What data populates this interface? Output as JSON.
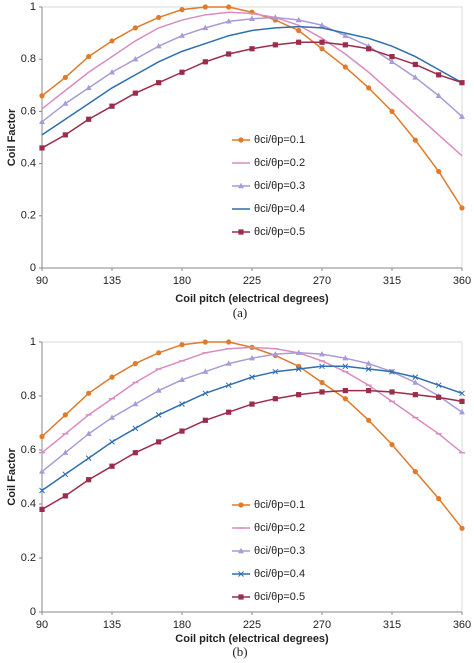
{
  "chart_data": [
    {
      "type": "line",
      "caption": "(a)",
      "x_label": "Coil pitch (electrical degrees)",
      "y_label": "Coil Factor",
      "x": [
        90,
        105,
        120,
        135,
        150,
        165,
        180,
        195,
        210,
        225,
        240,
        255,
        270,
        285,
        300,
        315,
        330,
        345,
        360
      ],
      "xlim": [
        90,
        360
      ],
      "xticks": [
        90,
        135,
        180,
        225,
        270,
        315,
        360
      ],
      "ylim": [
        0,
        1
      ],
      "yticks": [
        0,
        0.2,
        0.4,
        0.6,
        0.8,
        1
      ],
      "grid": false,
      "legend": "center",
      "series": [
        {
          "name": "θci/θp=0.1",
          "color": "#e07b2a",
          "marker": "circle",
          "values": [
            0.66,
            0.73,
            0.81,
            0.87,
            0.92,
            0.96,
            0.99,
            1.0,
            1.0,
            0.98,
            0.95,
            0.91,
            0.84,
            0.77,
            0.69,
            0.6,
            0.49,
            0.37,
            0.23
          ]
        },
        {
          "name": "θci/θp=0.2",
          "color": "#d98cc0",
          "marker": "none",
          "values": [
            0.61,
            0.68,
            0.75,
            0.81,
            0.87,
            0.92,
            0.95,
            0.97,
            0.98,
            0.975,
            0.96,
            0.93,
            0.88,
            0.82,
            0.75,
            0.67,
            0.59,
            0.51,
            0.43
          ]
        },
        {
          "name": "θci/θp=0.3",
          "color": "#a99bd8",
          "marker": "triangle",
          "values": [
            0.56,
            0.63,
            0.69,
            0.75,
            0.8,
            0.85,
            0.89,
            0.92,
            0.945,
            0.955,
            0.96,
            0.95,
            0.93,
            0.89,
            0.85,
            0.79,
            0.73,
            0.66,
            0.58
          ]
        },
        {
          "name": "θci/θp=0.4",
          "color": "#2f6fb0",
          "marker": "none",
          "values": [
            0.51,
            0.57,
            0.63,
            0.69,
            0.74,
            0.79,
            0.83,
            0.86,
            0.89,
            0.91,
            0.92,
            0.925,
            0.92,
            0.9,
            0.88,
            0.85,
            0.81,
            0.76,
            0.71
          ]
        },
        {
          "name": "θci/θp=0.5",
          "color": "#9b2c4a",
          "marker": "square",
          "values": [
            0.46,
            0.51,
            0.57,
            0.62,
            0.67,
            0.71,
            0.75,
            0.79,
            0.82,
            0.84,
            0.855,
            0.865,
            0.865,
            0.855,
            0.84,
            0.81,
            0.78,
            0.74,
            0.71
          ]
        }
      ]
    },
    {
      "type": "line",
      "caption": "(b)",
      "x_label": "Coil pitch (electrical degrees)",
      "y_label": "Coil Factor",
      "x": [
        90,
        105,
        120,
        135,
        150,
        165,
        180,
        195,
        210,
        225,
        240,
        255,
        270,
        285,
        300,
        315,
        330,
        345,
        360
      ],
      "xlim": [
        90,
        360
      ],
      "xticks": [
        90,
        135,
        180,
        225,
        270,
        315,
        360
      ],
      "ylim": [
        0,
        1
      ],
      "yticks": [
        0,
        0.2,
        0.4,
        0.6,
        0.8,
        1
      ],
      "grid": false,
      "legend": "center",
      "series": [
        {
          "name": "θci/θp=0.1",
          "color": "#e07b2a",
          "marker": "circle",
          "values": [
            0.65,
            0.73,
            0.81,
            0.87,
            0.92,
            0.96,
            0.99,
            1.0,
            1.0,
            0.98,
            0.95,
            0.91,
            0.85,
            0.79,
            0.71,
            0.62,
            0.52,
            0.42,
            0.31
          ]
        },
        {
          "name": "θci/θp=0.2",
          "color": "#d98cc0",
          "marker": "dash",
          "values": [
            0.59,
            0.66,
            0.73,
            0.79,
            0.85,
            0.9,
            0.93,
            0.96,
            0.975,
            0.98,
            0.975,
            0.96,
            0.93,
            0.89,
            0.84,
            0.78,
            0.72,
            0.66,
            0.59
          ]
        },
        {
          "name": "θci/θp=0.3",
          "color": "#a99bd8",
          "marker": "triangle",
          "values": [
            0.52,
            0.59,
            0.66,
            0.72,
            0.77,
            0.82,
            0.86,
            0.89,
            0.92,
            0.94,
            0.955,
            0.96,
            0.955,
            0.94,
            0.92,
            0.89,
            0.85,
            0.8,
            0.74
          ]
        },
        {
          "name": "θci/θp=0.4",
          "color": "#2f6fb0",
          "marker": "x",
          "values": [
            0.45,
            0.51,
            0.57,
            0.63,
            0.68,
            0.73,
            0.77,
            0.81,
            0.84,
            0.87,
            0.89,
            0.9,
            0.91,
            0.91,
            0.9,
            0.89,
            0.87,
            0.84,
            0.81
          ]
        },
        {
          "name": "θci/θp=0.5",
          "color": "#9b2c4a",
          "marker": "square",
          "values": [
            0.38,
            0.43,
            0.49,
            0.54,
            0.59,
            0.63,
            0.67,
            0.71,
            0.74,
            0.77,
            0.79,
            0.805,
            0.815,
            0.82,
            0.82,
            0.815,
            0.805,
            0.795,
            0.78
          ]
        }
      ]
    }
  ]
}
